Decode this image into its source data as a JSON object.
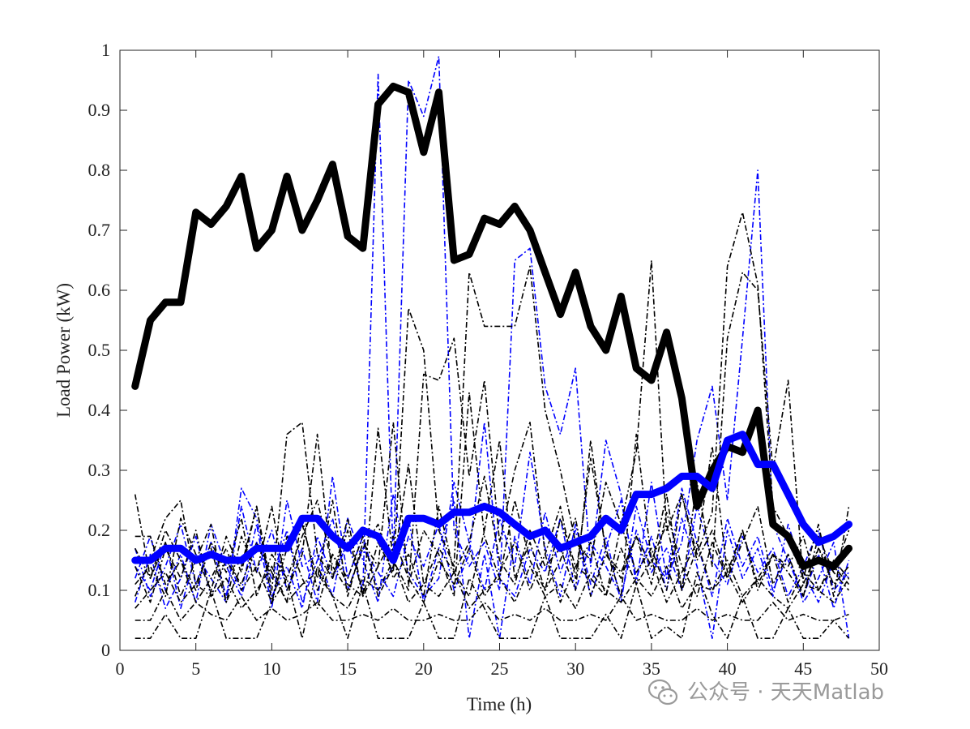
{
  "chart_data": {
    "type": "line",
    "title": "",
    "xlabel": "Time (h)",
    "ylabel": "Load Power (kW)",
    "xlim": [
      0,
      50
    ],
    "ylim": [
      0,
      1
    ],
    "xticks": [
      0,
      5,
      10,
      15,
      20,
      25,
      30,
      35,
      40,
      45,
      50
    ],
    "yticks": [
      0,
      0.1,
      0.2,
      0.3,
      0.4,
      0.5,
      0.6,
      0.7,
      0.8,
      0.9,
      1
    ],
    "grid": false,
    "legend": "none",
    "x": [
      1,
      2,
      3,
      4,
      5,
      6,
      7,
      8,
      9,
      10,
      11,
      12,
      13,
      14,
      15,
      16,
      17,
      18,
      19,
      20,
      21,
      22,
      23,
      24,
      25,
      26,
      27,
      28,
      29,
      30,
      31,
      32,
      33,
      34,
      35,
      36,
      37,
      38,
      39,
      40,
      41,
      42,
      43,
      44,
      45,
      46,
      47,
      48
    ],
    "series": [
      {
        "color": "#000000",
        "style": "bold",
        "values": [
          0.44,
          0.55,
          0.58,
          0.58,
          0.73,
          0.71,
          0.74,
          0.79,
          0.67,
          0.7,
          0.79,
          0.7,
          0.75,
          0.81,
          0.69,
          0.67,
          0.91,
          0.94,
          0.93,
          0.83,
          0.93,
          0.65,
          0.66,
          0.72,
          0.71,
          0.74,
          0.7,
          0.63,
          0.56,
          0.63,
          0.54,
          0.5,
          0.59,
          0.47,
          0.45,
          0.53,
          0.42,
          0.24,
          0.3,
          0.34,
          0.33,
          0.4,
          0.21,
          0.19,
          0.14,
          0.15,
          0.14,
          0.17
        ]
      },
      {
        "color": "#0000ff",
        "style": "bold",
        "values": [
          0.15,
          0.15,
          0.17,
          0.17,
          0.15,
          0.16,
          0.15,
          0.15,
          0.17,
          0.17,
          0.17,
          0.22,
          0.22,
          0.19,
          0.17,
          0.2,
          0.19,
          0.15,
          0.22,
          0.22,
          0.21,
          0.23,
          0.23,
          0.24,
          0.23,
          0.21,
          0.19,
          0.2,
          0.17,
          0.18,
          0.19,
          0.22,
          0.2,
          0.26,
          0.26,
          0.27,
          0.29,
          0.29,
          0.27,
          0.35,
          0.36,
          0.31,
          0.31,
          0.26,
          0.21,
          0.18,
          0.19,
          0.21
        ]
      },
      {
        "color": "#0000ff",
        "style": "thin",
        "values": [
          0.14,
          0.1,
          0.18,
          0.07,
          0.16,
          0.12,
          0.08,
          0.27,
          0.22,
          0.09,
          0.14,
          0.07,
          0.19,
          0.12,
          0.18,
          0.1,
          0.96,
          0.15,
          0.95,
          0.89,
          0.99,
          0.2,
          0.14,
          0.18,
          0.1,
          0.65,
          0.67,
          0.44,
          0.36,
          0.47,
          0.14,
          0.35,
          0.26,
          0.11,
          0.28,
          0.12,
          0.18,
          0.35,
          0.44,
          0.25,
          0.52,
          0.8,
          0.21,
          0.15,
          0.09,
          0.16,
          0.07,
          0.15
        ]
      },
      {
        "color": "#0000ff",
        "style": "thin",
        "values": [
          0.08,
          0.16,
          0.07,
          0.12,
          0.19,
          0.09,
          0.15,
          0.1,
          0.21,
          0.07,
          0.25,
          0.14,
          0.16,
          0.09,
          0.22,
          0.15,
          0.08,
          0.26,
          0.13,
          0.09,
          0.12,
          0.28,
          0.18,
          0.1,
          0.22,
          0.14,
          0.33,
          0.17,
          0.09,
          0.21,
          0.11,
          0.19,
          0.08,
          0.24,
          0.15,
          0.12,
          0.27,
          0.18,
          0.09,
          0.22,
          0.14,
          0.19,
          0.1,
          0.16,
          0.08,
          0.12,
          0.18,
          0.02
        ]
      },
      {
        "color": "#0000ff",
        "style": "thin",
        "values": [
          0.17,
          0.09,
          0.14,
          0.21,
          0.11,
          0.18,
          0.09,
          0.24,
          0.13,
          0.2,
          0.1,
          0.17,
          0.08,
          0.29,
          0.12,
          0.19,
          0.1,
          0.14,
          0.22,
          0.08,
          0.17,
          0.25,
          0.02,
          0.16,
          0.02,
          0.19,
          0.11,
          0.23,
          0.13,
          0.2,
          0.09,
          0.17,
          0.25,
          0.12,
          0.19,
          0.1,
          0.22,
          0.14,
          0.02,
          0.2,
          0.12,
          0.17,
          0.09,
          0.21,
          0.13,
          0.08,
          0.15,
          0.12
        ]
      },
      {
        "color": "#0000ff",
        "style": "thin",
        "values": [
          0.12,
          0.19,
          0.1,
          0.16,
          0.08,
          0.21,
          0.14,
          0.09,
          0.18,
          0.12,
          0.2,
          0.08,
          0.15,
          0.22,
          0.1,
          0.17,
          0.13,
          0.09,
          0.19,
          0.14,
          0.21,
          0.1,
          0.16,
          0.38,
          0.12,
          0.09,
          0.17,
          0.13,
          0.22,
          0.1,
          0.18,
          0.14,
          0.09,
          0.2,
          0.13,
          0.17,
          0.1,
          0.24,
          0.15,
          0.11,
          0.19,
          0.13,
          0.17,
          0.09,
          0.14,
          0.2,
          0.1,
          0.13
        ]
      },
      {
        "color": "#000000",
        "style": "thin",
        "values": [
          0.26,
          0.12,
          0.18,
          0.09,
          0.15,
          0.21,
          0.08,
          0.14,
          0.24,
          0.1,
          0.36,
          0.38,
          0.16,
          0.12,
          0.22,
          0.09,
          0.18,
          0.13,
          0.57,
          0.5,
          0.2,
          0.14,
          0.63,
          0.54,
          0.54,
          0.54,
          0.64,
          0.4,
          0.3,
          0.18,
          0.15,
          0.28,
          0.21,
          0.33,
          0.65,
          0.2,
          0.26,
          0.16,
          0.23,
          0.64,
          0.73,
          0.61,
          0.24,
          0.19,
          0.12,
          0.21,
          0.09,
          0.24
        ]
      },
      {
        "color": "#000000",
        "style": "thin",
        "values": [
          0.09,
          0.15,
          0.22,
          0.25,
          0.11,
          0.17,
          0.08,
          0.19,
          0.13,
          0.24,
          0.1,
          0.16,
          0.36,
          0.12,
          0.2,
          0.09,
          0.37,
          0.15,
          0.1,
          0.46,
          0.45,
          0.52,
          0.29,
          0.45,
          0.18,
          0.3,
          0.38,
          0.16,
          0.24,
          0.12,
          0.32,
          0.17,
          0.09,
          0.36,
          0.15,
          0.21,
          0.1,
          0.28,
          0.14,
          0.52,
          0.63,
          0.6,
          0.3,
          0.45,
          0.11,
          0.17,
          0.13,
          0.2
        ]
      },
      {
        "color": "#000000",
        "style": "thin",
        "values": [
          0.02,
          0.02,
          0.06,
          0.02,
          0.02,
          0.1,
          0.02,
          0.02,
          0.02,
          0.08,
          0.12,
          0.02,
          0.14,
          0.09,
          0.02,
          0.11,
          0.02,
          0.02,
          0.02,
          0.08,
          0.02,
          0.02,
          0.12,
          0.07,
          0.02,
          0.02,
          0.02,
          0.09,
          0.02,
          0.02,
          0.02,
          0.06,
          0.02,
          0.11,
          0.02,
          0.04,
          0.02,
          0.13,
          0.06,
          0.02,
          0.09,
          0.02,
          0.02,
          0.07,
          0.02,
          0.02,
          0.05,
          0.02
        ]
      },
      {
        "color": "#000000",
        "style": "thin",
        "values": [
          0.19,
          0.19,
          0.11,
          0.15,
          0.08,
          0.12,
          0.17,
          0.1,
          0.14,
          0.08,
          0.19,
          0.12,
          0.07,
          0.16,
          0.11,
          0.09,
          0.14,
          0.19,
          0.12,
          0.08,
          0.15,
          0.11,
          0.17,
          0.09,
          0.13,
          0.18,
          0.1,
          0.16,
          0.08,
          0.14,
          0.12,
          0.09,
          0.17,
          0.11,
          0.15,
          0.08,
          0.13,
          0.18,
          0.1,
          0.15,
          0.09,
          0.12,
          0.16,
          0.08,
          0.13,
          0.1,
          0.14,
          0.11
        ]
      },
      {
        "color": "#000000",
        "style": "thin",
        "values": [
          0.11,
          0.14,
          0.09,
          0.22,
          0.16,
          0.1,
          0.19,
          0.13,
          0.24,
          0.08,
          0.17,
          0.21,
          0.12,
          0.25,
          0.09,
          0.18,
          0.14,
          0.38,
          0.11,
          0.2,
          0.16,
          0.09,
          0.43,
          0.19,
          0.12,
          0.25,
          0.15,
          0.1,
          0.22,
          0.14,
          0.18,
          0.09,
          0.21,
          0.13,
          0.17,
          0.1,
          0.26,
          0.15,
          0.2,
          0.12,
          0.18,
          0.24,
          0.11,
          0.16,
          0.09,
          0.19,
          0.13,
          0.1
        ]
      },
      {
        "color": "#000000",
        "style": "thin",
        "values": [
          0.07,
          0.1,
          0.13,
          0.08,
          0.11,
          0.09,
          0.12,
          0.07,
          0.1,
          0.14,
          0.08,
          0.11,
          0.13,
          0.09,
          0.07,
          0.12,
          0.1,
          0.15,
          0.08,
          0.11,
          0.09,
          0.13,
          0.07,
          0.1,
          0.12,
          0.08,
          0.14,
          0.09,
          0.11,
          0.07,
          0.13,
          0.1,
          0.08,
          0.12,
          0.09,
          0.14,
          0.07,
          0.11,
          0.1,
          0.13,
          0.08,
          0.12,
          0.09,
          0.07,
          0.11,
          0.1,
          0.08,
          0.12
        ]
      },
      {
        "color": "#000000",
        "style": "thin",
        "values": [
          0.14,
          0.08,
          0.17,
          0.12,
          0.2,
          0.09,
          0.15,
          0.11,
          0.18,
          0.13,
          0.08,
          0.22,
          0.1,
          0.16,
          0.12,
          0.19,
          0.09,
          0.14,
          0.31,
          0.11,
          0.17,
          0.13,
          0.09,
          0.2,
          0.35,
          0.12,
          0.18,
          0.1,
          0.15,
          0.22,
          0.09,
          0.16,
          0.13,
          0.19,
          0.11,
          0.23,
          0.14,
          0.09,
          0.18,
          0.12,
          0.2,
          0.1,
          0.16,
          0.13,
          0.09,
          0.17,
          0.11,
          0.14
        ]
      },
      {
        "color": "#000000",
        "style": "thin",
        "values": [
          0.05,
          0.05,
          0.1,
          0.05,
          0.08,
          0.06,
          0.05,
          0.09,
          0.05,
          0.07,
          0.05,
          0.06,
          0.08,
          0.05,
          0.05,
          0.06,
          0.05,
          0.07,
          0.05,
          0.05,
          0.06,
          0.05,
          0.05,
          0.08,
          0.05,
          0.06,
          0.05,
          0.07,
          0.05,
          0.05,
          0.06,
          0.05,
          0.09,
          0.05,
          0.06,
          0.05,
          0.05,
          0.07,
          0.05,
          0.06,
          0.05,
          0.05,
          0.08,
          0.05,
          0.06,
          0.05,
          0.05,
          0.06
        ]
      },
      {
        "color": "#000000",
        "style": "thin",
        "values": [
          0.17,
          0.12,
          0.2,
          0.15,
          0.1,
          0.18,
          0.13,
          0.22,
          0.09,
          0.16,
          0.12,
          0.19,
          0.25,
          0.14,
          0.1,
          0.17,
          0.21,
          0.12,
          0.16,
          0.09,
          0.24,
          0.13,
          0.18,
          0.29,
          0.15,
          0.11,
          0.2,
          0.14,
          0.17,
          0.1,
          0.35,
          0.16,
          0.12,
          0.19,
          0.14,
          0.26,
          0.1,
          0.17,
          0.34,
          0.13,
          0.2,
          0.11,
          0.16,
          0.14,
          0.19,
          0.1,
          0.15,
          0.12
        ]
      }
    ]
  },
  "watermark": {
    "text": "公众号 · 天天Matlab",
    "icon": "wechat-icon"
  }
}
